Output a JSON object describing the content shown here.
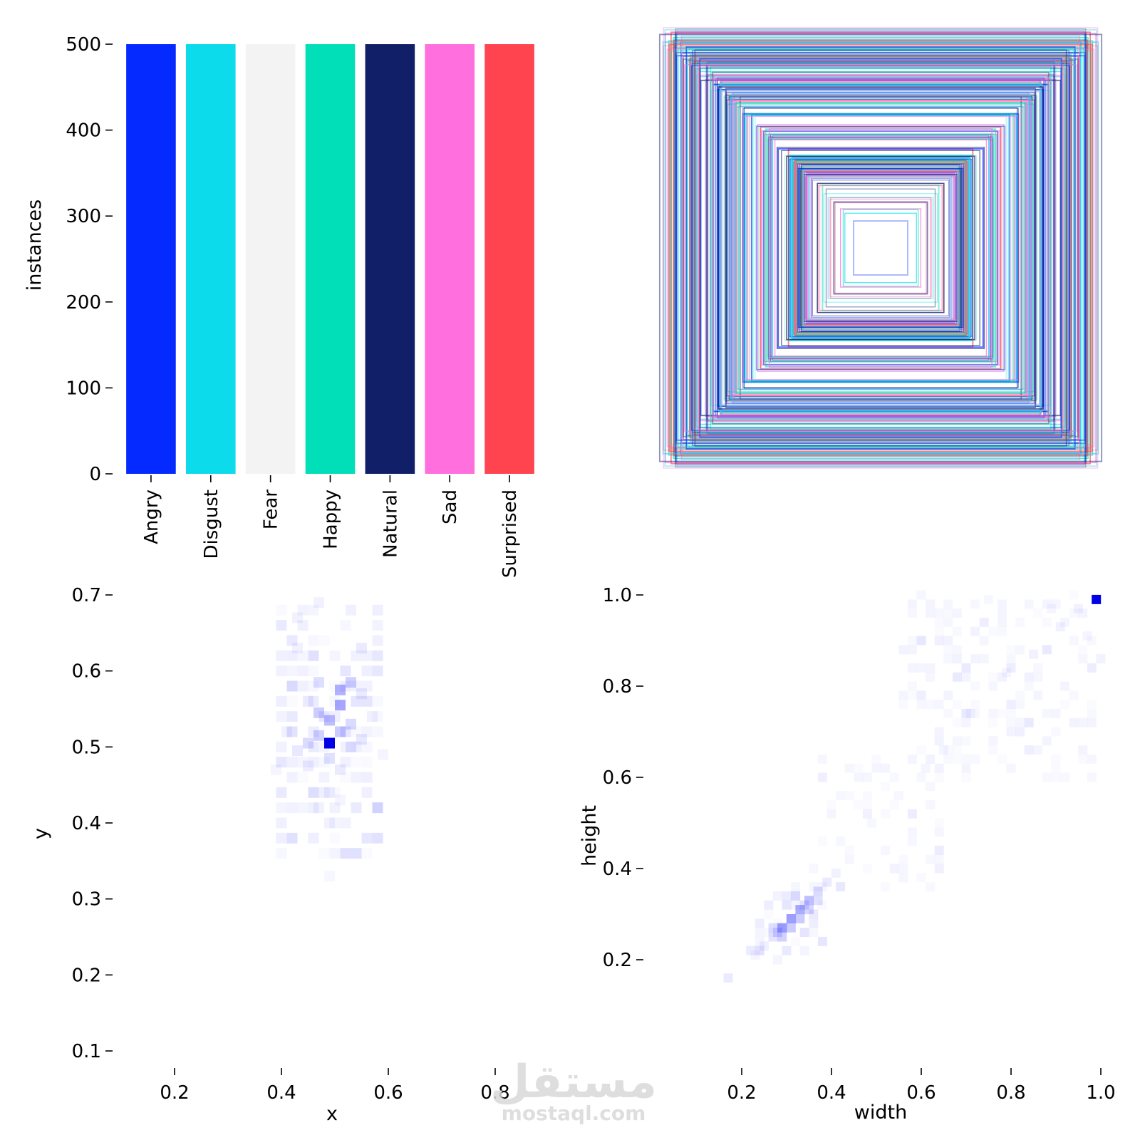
{
  "chart_data": [
    {
      "type": "bar",
      "ylabel": "instances",
      "xlabel": "",
      "ylim": [
        0,
        500
      ],
      "yticks": [
        "0",
        "100",
        "200",
        "300",
        "400",
        "500"
      ],
      "categories": [
        "Angry",
        "Disgust",
        "Fear",
        "Happy",
        "Natural",
        "Sad",
        "Surprised"
      ],
      "values": [
        500,
        500,
        500,
        500,
        500,
        500,
        500
      ],
      "colors": [
        "#042aff",
        "#0bdbeb",
        "#f3f3f3",
        "#00dfb7",
        "#111f68",
        "#ff6fdd",
        "#ff444f"
      ],
      "grid": false
    },
    {
      "type": "overlay",
      "note_visible": false,
      "nested_box_count_estimate": 60,
      "colors": [
        "#042aff",
        "#0bdbeb",
        "#00dfb7",
        "#111f68",
        "#ff6fdd",
        "#ff444f"
      ]
    },
    {
      "type": "heatmap",
      "xlabel": "x",
      "ylabel": "y",
      "xticks": [
        "0.2",
        "0.4",
        "0.6",
        "0.8"
      ],
      "yticks": [
        "0.1",
        "0.2",
        "0.3",
        "0.4",
        "0.5",
        "0.6",
        "0.7"
      ],
      "xlim": [
        0.1,
        0.9
      ],
      "ylim": [
        0.1,
        0.7
      ],
      "color": "#0000ff",
      "hot_cells": [
        {
          "x": 0.49,
          "y": 0.505,
          "v": 1.0
        },
        {
          "x": 0.51,
          "y": 0.555,
          "v": 0.35
        },
        {
          "x": 0.51,
          "y": 0.575,
          "v": 0.3
        },
        {
          "x": 0.49,
          "y": 0.535,
          "v": 0.25
        },
        {
          "x": 0.47,
          "y": 0.545,
          "v": 0.2
        },
        {
          "x": 0.53,
          "y": 0.585,
          "v": 0.18
        },
        {
          "x": 0.47,
          "y": 0.515,
          "v": 0.18
        },
        {
          "x": 0.51,
          "y": 0.52,
          "v": 0.2
        },
        {
          "x": 0.53,
          "y": 0.53,
          "v": 0.14
        },
        {
          "x": 0.45,
          "y": 0.505,
          "v": 0.14
        },
        {
          "x": 0.47,
          "y": 0.585,
          "v": 0.13
        },
        {
          "x": 0.49,
          "y": 0.485,
          "v": 0.12
        },
        {
          "x": 0.53,
          "y": 0.5,
          "v": 0.1
        },
        {
          "x": 0.55,
          "y": 0.51,
          "v": 0.09
        },
        {
          "x": 0.43,
          "y": 0.495,
          "v": 0.09
        },
        {
          "x": 0.45,
          "y": 0.475,
          "v": 0.07
        },
        {
          "x": 0.51,
          "y": 0.47,
          "v": 0.08
        },
        {
          "x": 0.55,
          "y": 0.57,
          "v": 0.08
        },
        {
          "x": 0.45,
          "y": 0.56,
          "v": 0.08
        },
        {
          "x": 0.41,
          "y": 0.52,
          "v": 0.06
        },
        {
          "x": 0.57,
          "y": 0.54,
          "v": 0.06
        },
        {
          "x": 0.43,
          "y": 0.67,
          "v": 0.05
        },
        {
          "x": 0.47,
          "y": 0.69,
          "v": 0.05
        },
        {
          "x": 0.53,
          "y": 0.68,
          "v": 0.06
        },
        {
          "x": 0.55,
          "y": 0.63,
          "v": 0.08
        },
        {
          "x": 0.43,
          "y": 0.63,
          "v": 0.05
        },
        {
          "x": 0.49,
          "y": 0.44,
          "v": 0.06
        },
        {
          "x": 0.47,
          "y": 0.42,
          "v": 0.05
        },
        {
          "x": 0.49,
          "y": 0.4,
          "v": 0.05
        },
        {
          "x": 0.39,
          "y": 0.47,
          "v": 0.04
        },
        {
          "x": 0.59,
          "y": 0.49,
          "v": 0.04
        },
        {
          "x": 0.51,
          "y": 0.43,
          "v": 0.04
        },
        {
          "x": 0.49,
          "y": 0.33,
          "v": 0.03
        }
      ]
    },
    {
      "type": "heatmap",
      "xlabel": "width",
      "ylabel": "height",
      "xticks": [
        "0.2",
        "0.4",
        "0.6",
        "0.8",
        "1.0"
      ],
      "yticks": [
        "0.2",
        "0.4",
        "0.6",
        "0.8",
        "1.0"
      ],
      "xlim": [
        0.0,
        1.0
      ],
      "ylim": [
        0.0,
        1.0
      ],
      "color": "#0000ff",
      "hot_cells": [
        {
          "x": 0.99,
          "y": 0.99,
          "v": 1.0
        },
        {
          "x": 0.29,
          "y": 0.27,
          "v": 0.4
        },
        {
          "x": 0.31,
          "y": 0.29,
          "v": 0.38
        },
        {
          "x": 0.33,
          "y": 0.31,
          "v": 0.32
        },
        {
          "x": 0.35,
          "y": 0.33,
          "v": 0.25
        },
        {
          "x": 0.29,
          "y": 0.25,
          "v": 0.18
        },
        {
          "x": 0.31,
          "y": 0.27,
          "v": 0.2
        },
        {
          "x": 0.33,
          "y": 0.29,
          "v": 0.2
        },
        {
          "x": 0.35,
          "y": 0.31,
          "v": 0.16
        },
        {
          "x": 0.37,
          "y": 0.35,
          "v": 0.14
        },
        {
          "x": 0.27,
          "y": 0.27,
          "v": 0.12
        },
        {
          "x": 0.37,
          "y": 0.33,
          "v": 0.12
        },
        {
          "x": 0.27,
          "y": 0.25,
          "v": 0.1
        },
        {
          "x": 0.39,
          "y": 0.37,
          "v": 0.08
        },
        {
          "x": 0.25,
          "y": 0.23,
          "v": 0.06
        },
        {
          "x": 0.17,
          "y": 0.16,
          "v": 0.08
        },
        {
          "x": 0.41,
          "y": 0.39,
          "v": 0.05
        },
        {
          "x": 0.23,
          "y": 0.21,
          "v": 0.04
        },
        {
          "x": 0.61,
          "y": 0.62,
          "v": 0.04
        },
        {
          "x": 0.65,
          "y": 0.66,
          "v": 0.04
        },
        {
          "x": 0.71,
          "y": 0.74,
          "v": 0.04
        },
        {
          "x": 0.79,
          "y": 0.83,
          "v": 0.04
        },
        {
          "x": 0.85,
          "y": 0.87,
          "v": 0.05
        },
        {
          "x": 0.91,
          "y": 0.93,
          "v": 0.05
        },
        {
          "x": 0.95,
          "y": 0.97,
          "v": 0.05
        },
        {
          "x": 0.97,
          "y": 0.91,
          "v": 0.04
        },
        {
          "x": 0.89,
          "y": 0.97,
          "v": 0.04
        },
        {
          "x": 0.75,
          "y": 0.99,
          "v": 0.03
        },
        {
          "x": 0.55,
          "y": 0.56,
          "v": 0.03
        },
        {
          "x": 0.49,
          "y": 0.5,
          "v": 0.03
        }
      ]
    }
  ],
  "watermark": {
    "arabic": "مستقل",
    "latin": "mostaql.com"
  }
}
